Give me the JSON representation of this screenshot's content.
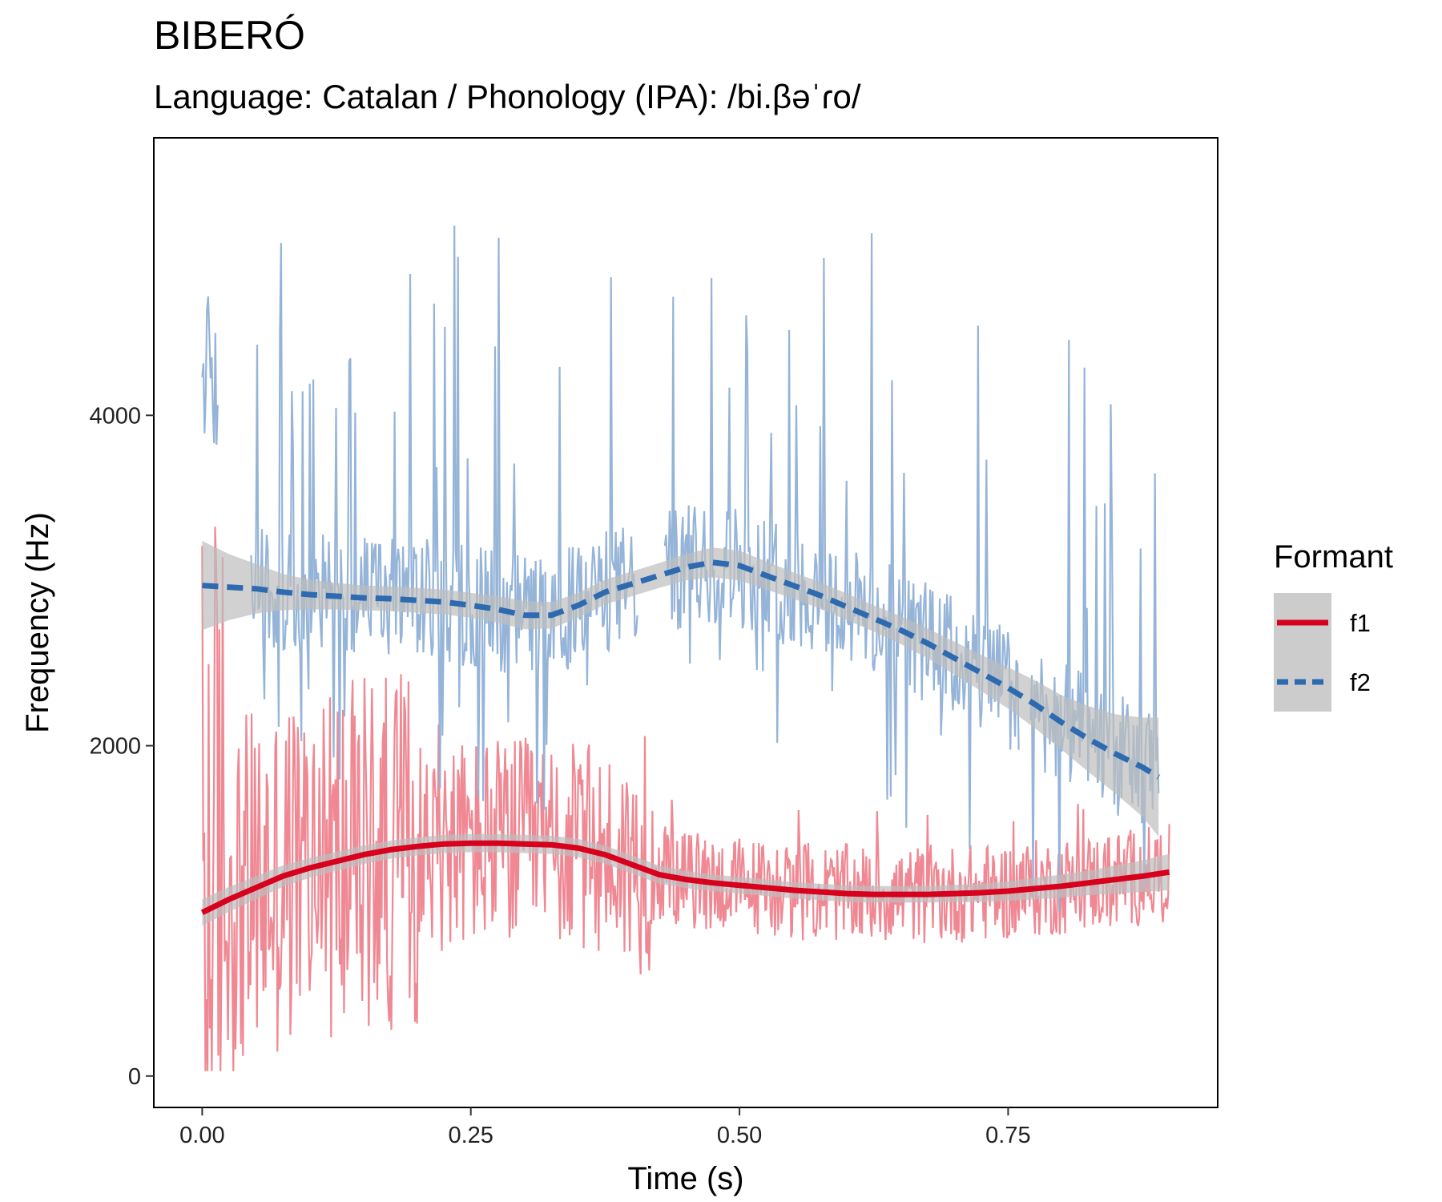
{
  "chart_data": {
    "type": "line",
    "title": "BIBERÓ",
    "subtitle": "Language: Catalan / Phonology (IPA): /bi.βəˈɾo/",
    "xlabel": "Time (s)",
    "ylabel": "Frequency (Hz)",
    "xlim": [
      -0.045,
      0.945
    ],
    "ylim": [
      -190,
      5680
    ],
    "xticks": [
      0.0,
      0.25,
      0.5,
      0.75
    ],
    "xtick_labels": [
      "0.00",
      "0.25",
      "0.50",
      "0.75"
    ],
    "yticks": [
      0,
      2000,
      4000
    ],
    "ytick_labels": [
      "0",
      "2000",
      "4000"
    ],
    "grid": false,
    "legend": {
      "title": "Formant",
      "position": "right",
      "entries": [
        {
          "label": "f1",
          "color": "#D7001D",
          "dash": "solid"
        },
        {
          "label": "f2",
          "color": "#2D6AB0",
          "dash": "dashed"
        }
      ]
    },
    "colors": {
      "f1_raw": "#EE7B87",
      "f1_smooth": "#D7001D",
      "f2_raw": "#8FB0D6",
      "f2_smooth": "#2D6AB0",
      "ribbon": "#BEBEBE"
    },
    "series": [
      {
        "name": "f1",
        "x": [
          0.0,
          0.025,
          0.05,
          0.075,
          0.1,
          0.125,
          0.15,
          0.175,
          0.2,
          0.225,
          0.25,
          0.275,
          0.3,
          0.325,
          0.35,
          0.375,
          0.4,
          0.425,
          0.45,
          0.475,
          0.5,
          0.525,
          0.55,
          0.575,
          0.6,
          0.625,
          0.65,
          0.675,
          0.7,
          0.725,
          0.75,
          0.775,
          0.8,
          0.825,
          0.85,
          0.875,
          0.9
        ],
        "smooth": [
          990,
          1070,
          1140,
          1210,
          1260,
          1300,
          1340,
          1370,
          1390,
          1405,
          1410,
          1410,
          1405,
          1400,
          1380,
          1340,
          1280,
          1220,
          1190,
          1170,
          1155,
          1140,
          1125,
          1115,
          1105,
          1100,
          1100,
          1100,
          1105,
          1110,
          1120,
          1135,
          1150,
          1170,
          1190,
          1210,
          1235
        ],
        "ribbon_half": [
          80,
          75,
          70,
          65,
          60,
          58,
          56,
          55,
          55,
          55,
          55,
          55,
          55,
          55,
          55,
          55,
          55,
          55,
          52,
          50,
          50,
          50,
          50,
          50,
          50,
          50,
          50,
          50,
          52,
          55,
          60,
          65,
          70,
          75,
          85,
          95,
          110
        ]
      },
      {
        "name": "f2",
        "x": [
          0.0,
          0.025,
          0.05,
          0.075,
          0.1,
          0.125,
          0.15,
          0.175,
          0.2,
          0.225,
          0.25,
          0.275,
          0.3,
          0.325,
          0.35,
          0.375,
          0.4,
          0.425,
          0.45,
          0.475,
          0.5,
          0.525,
          0.55,
          0.575,
          0.6,
          0.625,
          0.65,
          0.675,
          0.7,
          0.725,
          0.75,
          0.775,
          0.8,
          0.825,
          0.85,
          0.875,
          0.89
        ],
        "smooth": [
          2970,
          2960,
          2950,
          2930,
          2915,
          2905,
          2895,
          2890,
          2880,
          2870,
          2850,
          2825,
          2790,
          2790,
          2850,
          2930,
          2980,
          3030,
          3080,
          3110,
          3090,
          3030,
          2970,
          2910,
          2840,
          2770,
          2700,
          2620,
          2530,
          2440,
          2350,
          2250,
          2140,
          2040,
          1950,
          1870,
          1810
        ],
        "ribbon_half": [
          270,
          200,
          150,
          110,
          90,
          80,
          75,
          75,
          75,
          75,
          75,
          80,
          85,
          80,
          75,
          75,
          75,
          75,
          80,
          90,
          90,
          85,
          80,
          80,
          80,
          80,
          85,
          90,
          100,
          110,
          125,
          145,
          165,
          200,
          240,
          300,
          360
        ]
      }
    ]
  }
}
